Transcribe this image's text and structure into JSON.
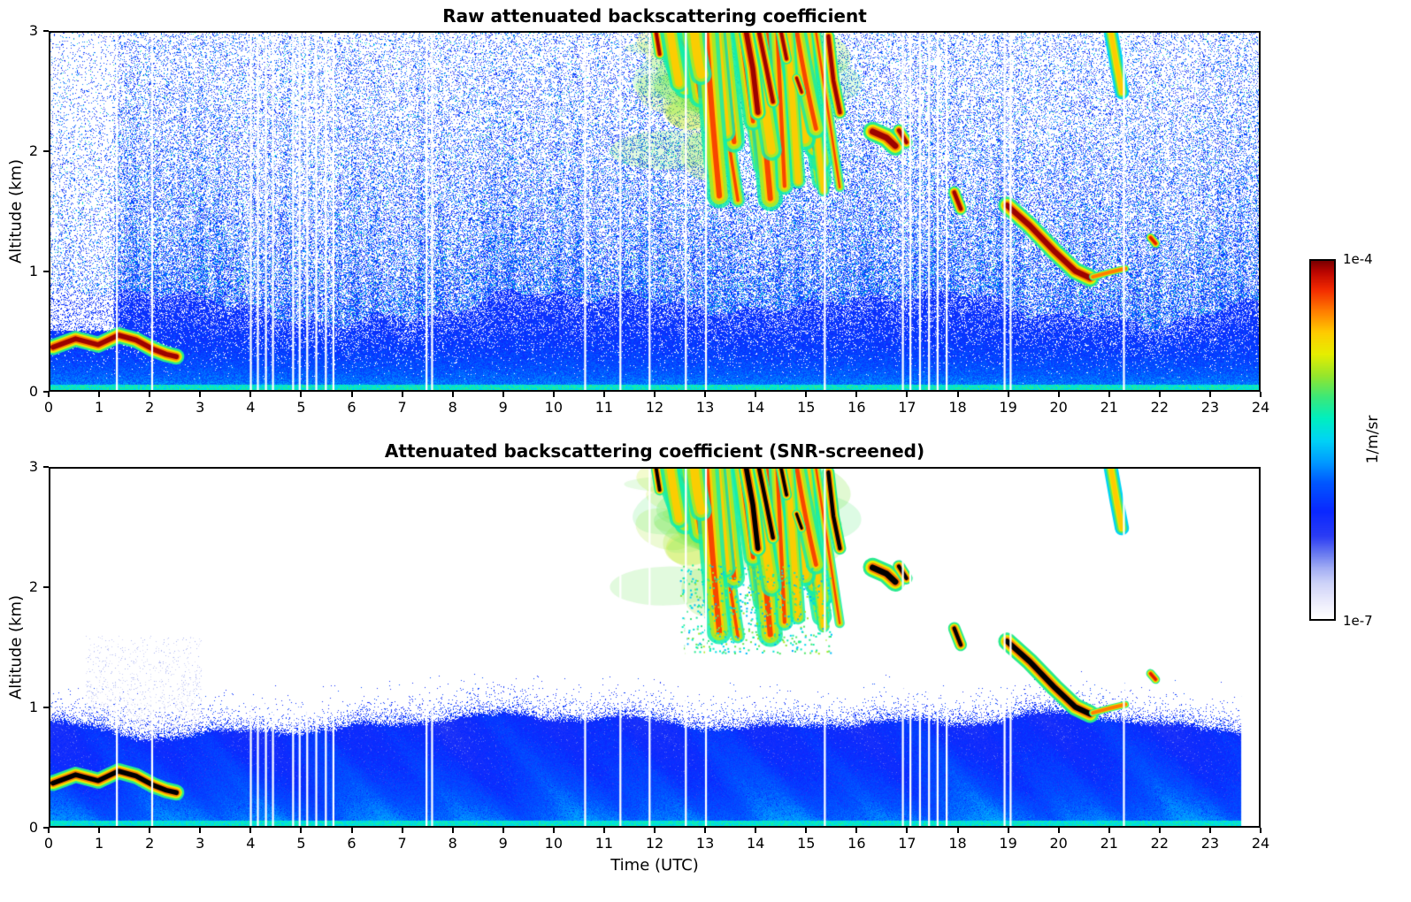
{
  "chart_data": {
    "type": "heatmap",
    "panels": [
      {
        "title": "Raw attenuated backscattering coefficient",
        "style": "raw"
      },
      {
        "title": "Attenuated backscattering coefficient (SNR-screened)",
        "style": "screened"
      }
    ],
    "x": {
      "label": "Time (UTC)",
      "min": 0,
      "max": 24,
      "tick_step": 1
    },
    "y": {
      "label": "Altitude (km)",
      "min": 0,
      "max": 3,
      "tick_step": 1
    },
    "x_tick_labels": [
      "0",
      "1",
      "2",
      "3",
      "4",
      "5",
      "6",
      "7",
      "8",
      "9",
      "10",
      "11",
      "12",
      "13",
      "14",
      "15",
      "16",
      "17",
      "18",
      "19",
      "20",
      "21",
      "22",
      "23",
      "24"
    ],
    "y_tick_labels": [
      "0",
      "1",
      "2",
      "3"
    ],
    "colorbar": {
      "label": "1/m/sr",
      "min": "1e-7",
      "max": "1e-4",
      "log_min": -7,
      "log_max": -4,
      "scale": "log"
    },
    "colormap_stops": [
      [
        0.0,
        "#ffffff"
      ],
      [
        0.05,
        "#eaeafc"
      ],
      [
        0.1,
        "#cdd2f8"
      ],
      [
        0.14,
        "#a3aef4"
      ],
      [
        0.18,
        "#6b7cf0"
      ],
      [
        0.23,
        "#2b3cf4"
      ],
      [
        0.3,
        "#0a28ff"
      ],
      [
        0.38,
        "#0057ff"
      ],
      [
        0.44,
        "#009dff"
      ],
      [
        0.5,
        "#00d4f5"
      ],
      [
        0.56,
        "#00efc0"
      ],
      [
        0.62,
        "#3ce878"
      ],
      [
        0.68,
        "#96e62c"
      ],
      [
        0.74,
        "#e6ee00"
      ],
      [
        0.8,
        "#ffcc00"
      ],
      [
        0.86,
        "#ff7d00"
      ],
      [
        0.92,
        "#f32b00"
      ],
      [
        0.97,
        "#bb0500"
      ],
      [
        1.0,
        "#7a0000"
      ]
    ],
    "boundary_layer": {
      "mean_top_km": 0.88,
      "surface_u": 0.45,
      "bulk_u": 0.3
    },
    "surface_aerosol_layer": {
      "t0": 0,
      "t1": 2.55,
      "z_center_km": 0.38,
      "saturated": true
    },
    "fallstreaks": {
      "t0": 11.95,
      "t1": 15.4,
      "z_top_km": 3.0,
      "z_bottom_km": 1.55,
      "count": 26,
      "seed": 7
    },
    "cores": [
      {
        "pts": [
          [
            0.05,
            0.36
          ],
          [
            0.5,
            0.43
          ],
          [
            0.95,
            0.38
          ],
          [
            1.35,
            0.46
          ],
          [
            1.7,
            0.42
          ],
          [
            2.05,
            0.34
          ],
          [
            2.3,
            0.3
          ],
          [
            2.5,
            0.28
          ]
        ],
        "w": 9,
        "sat": true
      },
      {
        "pts": [
          [
            13.8,
            3.05
          ],
          [
            13.95,
            2.7
          ],
          [
            14.05,
            2.33
          ]
        ],
        "w": 9,
        "sat": true
      },
      {
        "pts": [
          [
            14.05,
            3.05
          ],
          [
            14.22,
            2.7
          ],
          [
            14.35,
            2.42
          ]
        ],
        "w": 7,
        "sat": true
      },
      {
        "pts": [
          [
            12.02,
            3.03
          ],
          [
            12.1,
            2.82
          ]
        ],
        "w": 6,
        "sat": true
      },
      {
        "pts": [
          [
            14.5,
            3.03
          ],
          [
            14.62,
            2.78
          ]
        ],
        "w": 6,
        "sat": true
      },
      {
        "pts": [
          [
            14.82,
            2.62
          ],
          [
            14.92,
            2.5
          ]
        ],
        "w": 5,
        "sat": true
      },
      {
        "pts": [
          [
            15.45,
            2.97
          ],
          [
            15.55,
            2.6
          ],
          [
            15.68,
            2.33
          ]
        ],
        "w": 7,
        "sat": true
      },
      {
        "pts": [
          [
            16.33,
            2.17
          ],
          [
            16.6,
            2.12
          ],
          [
            16.78,
            2.05
          ]
        ],
        "w": 11,
        "sat": true
      },
      {
        "pts": [
          [
            16.85,
            2.18
          ],
          [
            17.0,
            2.08
          ]
        ],
        "w": 7,
        "sat": true
      },
      {
        "pts": [
          [
            17.95,
            1.66
          ],
          [
            18.08,
            1.52
          ]
        ],
        "w": 7,
        "sat": true
      },
      {
        "pts": [
          [
            19.0,
            1.55
          ],
          [
            19.45,
            1.38
          ],
          [
            19.95,
            1.16
          ],
          [
            20.35,
            1.0
          ],
          [
            20.65,
            0.94
          ]
        ],
        "w": 10,
        "sat": true
      },
      {
        "pts": [
          [
            20.7,
            0.95
          ],
          [
            21.05,
            0.99
          ],
          [
            21.35,
            1.02
          ]
        ],
        "w": 4,
        "sat": false,
        "fringeOnly": true
      },
      {
        "pts": [
          [
            21.85,
            1.28
          ],
          [
            21.95,
            1.23
          ]
        ],
        "w": 5,
        "sat": false
      },
      {
        "pts": [
          [
            21.05,
            3.03
          ],
          [
            21.18,
            2.72
          ],
          [
            21.28,
            2.5
          ]
        ],
        "w": 8,
        "sat": false,
        "green": true
      }
    ],
    "gap_times_utc": [
      1.32,
      2.02,
      3.98,
      4.12,
      4.28,
      4.42,
      4.82,
      4.95,
      5.1,
      5.28,
      5.47,
      5.62,
      7.47,
      7.58,
      10.62,
      11.32,
      11.9,
      12.62,
      13.02,
      15.38,
      16.93,
      17.08,
      17.27,
      17.45,
      17.62,
      17.8,
      18.95,
      19.07,
      21.32
    ],
    "data_end_time_utc": 23.65
  }
}
